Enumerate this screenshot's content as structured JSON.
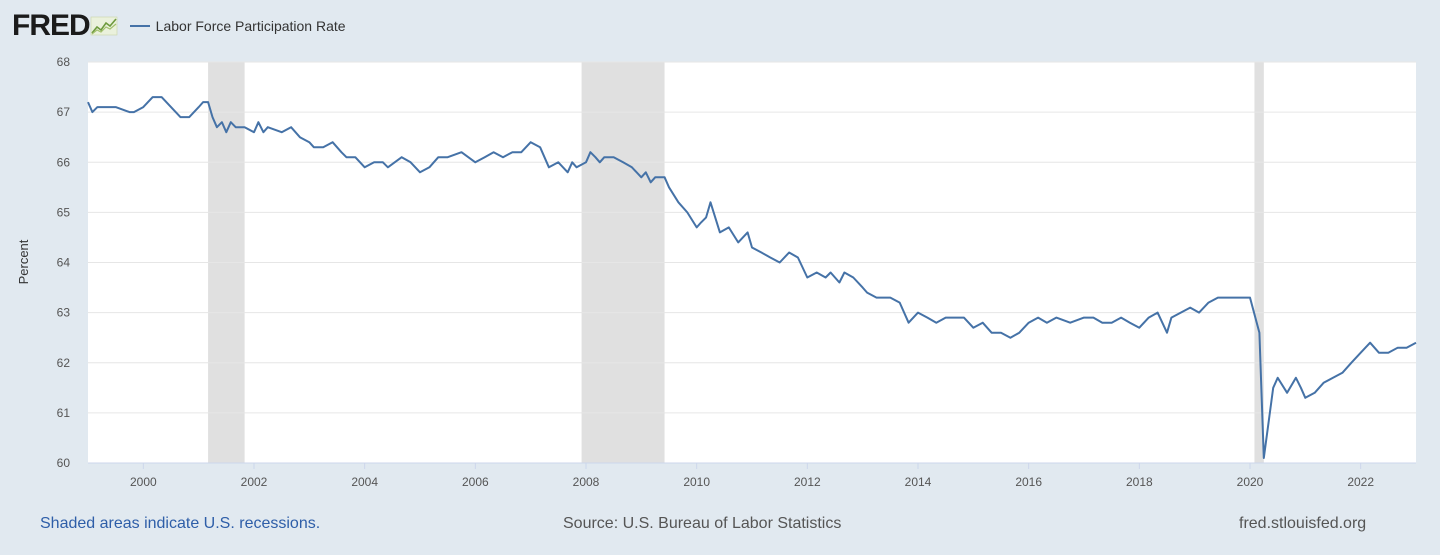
{
  "header": {
    "logo_text": "FRED",
    "legend_label": "Labor Force Participation Rate"
  },
  "footer": {
    "recession_note": "Shaded areas indicate U.S. recessions.",
    "source": "Source: U.S. Bureau of Labor Statistics",
    "site": "fred.stlouisfed.org"
  },
  "colors": {
    "line": "#4572a7",
    "recession": "#e0e0e0",
    "grid": "#e6e6e6",
    "background": "#e1e9f0"
  },
  "chart_data": {
    "type": "line",
    "title": "",
    "xlabel": "",
    "ylabel": "Percent",
    "ylim": [
      60,
      68
    ],
    "xlim": [
      1999.0,
      2023.0
    ],
    "grid": "horizontal",
    "legend": "top-left",
    "yticks": [
      60,
      61,
      62,
      63,
      64,
      65,
      66,
      67,
      68
    ],
    "xticks": [
      "2000",
      "2002",
      "2004",
      "2006",
      "2008",
      "2010",
      "2012",
      "2014",
      "2016",
      "2018",
      "2020",
      "2022"
    ],
    "recessions": [
      [
        2001.17,
        2001.83
      ],
      [
        2007.92,
        2009.42
      ],
      [
        2020.08,
        2020.25
      ]
    ],
    "series": [
      {
        "name": "Labor Force Participation Rate",
        "x": [
          1999.0,
          1999.08,
          1999.17,
          1999.25,
          1999.5,
          1999.75,
          1999.83,
          2000.0,
          2000.17,
          2000.25,
          2000.33,
          2000.5,
          2000.67,
          2000.83,
          2001.0,
          2001.08,
          2001.17,
          2001.25,
          2001.33,
          2001.42,
          2001.5,
          2001.58,
          2001.67,
          2001.75,
          2001.83,
          2002.0,
          2002.08,
          2002.17,
          2002.25,
          2002.5,
          2002.67,
          2002.83,
          2003.0,
          2003.08,
          2003.25,
          2003.42,
          2003.58,
          2003.67,
          2003.83,
          2004.0,
          2004.17,
          2004.33,
          2004.42,
          2004.67,
          2004.83,
          2005.0,
          2005.17,
          2005.33,
          2005.5,
          2005.75,
          2006.0,
          2006.17,
          2006.33,
          2006.5,
          2006.67,
          2006.83,
          2007.0,
          2007.17,
          2007.33,
          2007.5,
          2007.67,
          2007.75,
          2007.83,
          2008.0,
          2008.08,
          2008.17,
          2008.25,
          2008.33,
          2008.5,
          2008.67,
          2008.83,
          2009.0,
          2009.08,
          2009.17,
          2009.25,
          2009.42,
          2009.5,
          2009.67,
          2009.83,
          2010.0,
          2010.08,
          2010.17,
          2010.25,
          2010.42,
          2010.58,
          2010.75,
          2010.92,
          2011.0,
          2011.17,
          2011.33,
          2011.5,
          2011.67,
          2011.83,
          2012.0,
          2012.17,
          2012.33,
          2012.42,
          2012.58,
          2012.67,
          2012.83,
          2013.0,
          2013.08,
          2013.25,
          2013.5,
          2013.67,
          2013.83,
          2014.0,
          2014.17,
          2014.33,
          2014.5,
          2014.67,
          2014.83,
          2015.0,
          2015.17,
          2015.33,
          2015.5,
          2015.67,
          2015.83,
          2016.0,
          2016.17,
          2016.33,
          2016.5,
          2016.75,
          2017.0,
          2017.17,
          2017.33,
          2017.5,
          2017.67,
          2017.83,
          2018.0,
          2018.17,
          2018.33,
          2018.5,
          2018.58,
          2018.75,
          2018.92,
          2019.08,
          2019.25,
          2019.42,
          2019.58,
          2019.75,
          2020.0,
          2020.17,
          2020.25,
          2020.42,
          2020.5,
          2020.67,
          2020.83,
          2020.92,
          2021.0,
          2021.17,
          2021.33,
          2021.5,
          2021.67,
          2021.83,
          2022.0,
          2022.17,
          2022.33,
          2022.5,
          2022.67,
          2022.83,
          2023.0
        ],
        "y": [
          67.2,
          67.0,
          67.1,
          67.1,
          67.1,
          67.0,
          67.0,
          67.1,
          67.3,
          67.3,
          67.3,
          67.1,
          66.9,
          66.9,
          67.1,
          67.2,
          67.2,
          66.9,
          66.7,
          66.8,
          66.6,
          66.8,
          66.7,
          66.7,
          66.7,
          66.6,
          66.8,
          66.6,
          66.7,
          66.6,
          66.7,
          66.5,
          66.4,
          66.3,
          66.3,
          66.4,
          66.2,
          66.1,
          66.1,
          65.9,
          66.0,
          66.0,
          65.9,
          66.1,
          66.0,
          65.8,
          65.9,
          66.1,
          66.1,
          66.2,
          66.0,
          66.1,
          66.2,
          66.1,
          66.2,
          66.2,
          66.4,
          66.3,
          65.9,
          66.0,
          65.8,
          66.0,
          65.9,
          66.0,
          66.2,
          66.1,
          66.0,
          66.1,
          66.1,
          66.0,
          65.9,
          65.7,
          65.8,
          65.6,
          65.7,
          65.7,
          65.5,
          65.2,
          65.0,
          64.7,
          64.8,
          64.9,
          65.2,
          64.6,
          64.7,
          64.4,
          64.6,
          64.3,
          64.2,
          64.1,
          64.0,
          64.2,
          64.1,
          63.7,
          63.8,
          63.7,
          63.8,
          63.6,
          63.8,
          63.7,
          63.5,
          63.4,
          63.3,
          63.3,
          63.2,
          62.8,
          63.0,
          62.9,
          62.8,
          62.9,
          62.9,
          62.9,
          62.7,
          62.8,
          62.6,
          62.6,
          62.5,
          62.6,
          62.8,
          62.9,
          62.8,
          62.9,
          62.8,
          62.9,
          62.9,
          62.8,
          62.8,
          62.9,
          62.8,
          62.7,
          62.9,
          63.0,
          62.6,
          62.9,
          63.0,
          63.1,
          63.0,
          63.2,
          63.3,
          63.3,
          63.3,
          63.3,
          62.6,
          60.1,
          61.5,
          61.7,
          61.4,
          61.7,
          61.5,
          61.3,
          61.4,
          61.6,
          61.7,
          61.8,
          62.0,
          62.2,
          62.4,
          62.2,
          62.2,
          62.3,
          62.3,
          62.4
        ]
      }
    ]
  }
}
